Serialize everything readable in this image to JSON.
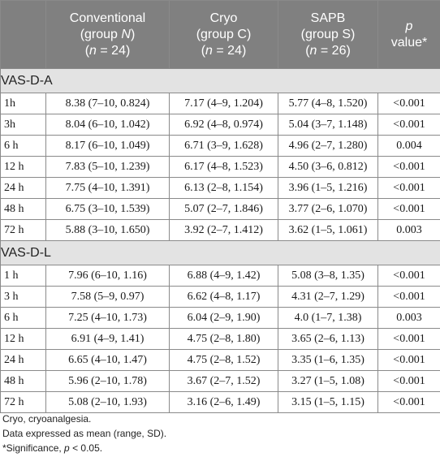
{
  "header": {
    "c1": [
      "Conventional",
      "(group N)",
      "(n = 24)"
    ],
    "c2": [
      "Cryo",
      "(group C)",
      "(n = 24)"
    ],
    "c3": [
      "SAPB",
      "(group S)",
      "(n = 26)"
    ],
    "c4": [
      "p",
      "value*"
    ]
  },
  "sections": [
    {
      "title": "VAS-D-A",
      "rows": [
        {
          "time": "1h",
          "n": "8.38 (7–10, 0.824)",
          "c": "7.17 (4–9, 1.204)",
          "s": "5.77 (4–8, 1.520)",
          "p": "<0.001"
        },
        {
          "time": "3h",
          "n": "8.04 (6–10, 1.042)",
          "c": "6.92 (4–8, 0.974)",
          "s": "5.04 (3–7, 1.148)",
          "p": "<0.001"
        },
        {
          "time": "6 h",
          "n": "8.17 (6–10, 1.049)",
          "c": "6.71 (3–9, 1.628)",
          "s": "4.96 (2–7, 1.280)",
          "p": "0.004"
        },
        {
          "time": "12 h",
          "n": "7.83 (5–10, 1.239)",
          "c": "6.17 (4–8, 1.523)",
          "s": "4.50 (3–6, 0.812)",
          "p": "<0.001"
        },
        {
          "time": "24 h",
          "n": "7.75 (4–10, 1.391)",
          "c": "6.13 (2–8, 1.154)",
          "s": "3.96 (1–5, 1.216)",
          "p": "<0.001"
        },
        {
          "time": "48 h",
          "n": "6.75 (3–10, 1.539)",
          "c": "5.07 (2–7, 1.846)",
          "s": "3.77 (2–6, 1.070)",
          "p": "<0.001"
        },
        {
          "time": "72 h",
          "n": "5.88 (3–10, 1.650)",
          "c": "3.92 (2–7, 1.412)",
          "s": "3.62 (1–5, 1.061)",
          "p": "0.003"
        }
      ]
    },
    {
      "title": "VAS-D-L",
      "rows": [
        {
          "time": "1 h",
          "n": "7.96 (6–10, 1.16)",
          "c": "6.88 (4–9, 1.42)",
          "s": "5.08 (3–8, 1.35)",
          "p": "<0.001"
        },
        {
          "time": "3 h",
          "n": "7.58 (5–9, 0.97)",
          "c": "6.62 (4–8, 1.17)",
          "s": "4.31 (2–7, 1.29)",
          "p": "<0.001"
        },
        {
          "time": "6 h",
          "n": "7.25 (4–10, 1.73)",
          "c": "6.04 (2–9, 1.90)",
          "s": "4.0 (1–7, 1.38)",
          "p": "0.003"
        },
        {
          "time": "12 h",
          "n": "6.91 (4–9, 1.41)",
          "c": "4.75 (2–8, 1.80)",
          "s": "3.65 (2–6, 1.13)",
          "p": "<0.001"
        },
        {
          "time": "24 h",
          "n": "6.65 (4–10, 1.47)",
          "c": "4.75 (2–8, 1.52)",
          "s": "3.35 (1–6, 1.35)",
          "p": "<0.001"
        },
        {
          "time": "48 h",
          "n": "5.96 (2–10, 1.78)",
          "c": "3.67 (2–7, 1.52)",
          "s": "3.27 (1–5, 1.08)",
          "p": "<0.001"
        },
        {
          "time": "72 h",
          "n": "5.08 (2–10, 1.93)",
          "c": "3.16 (2–6, 1.49)",
          "s": "3.15 (1–5, 1.15)",
          "p": "<0.001"
        }
      ]
    }
  ],
  "notes": [
    "Cryo, cryoanalgesia.",
    "Data expressed as mean (range, SD).",
    "*Significance, p < 0.05."
  ]
}
